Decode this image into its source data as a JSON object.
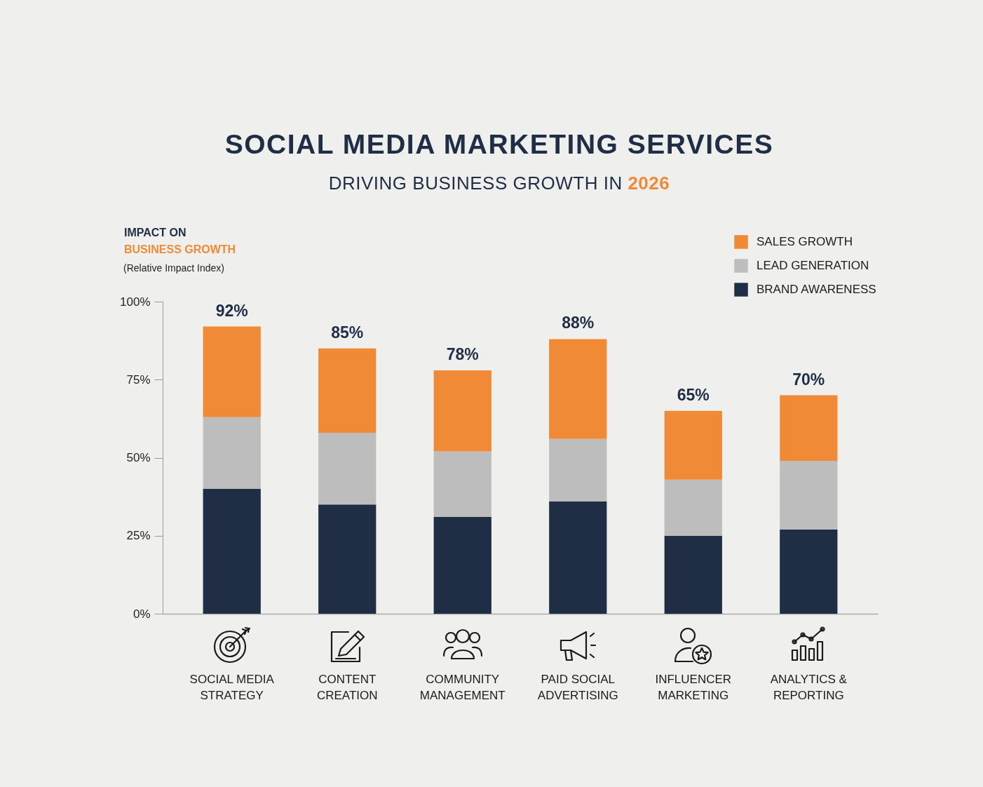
{
  "chart_data": {
    "type": "bar",
    "title": "SOCIAL MEDIA MARKETING SERVICES",
    "subtitle": "DRIVING BUSINESS GROWTH IN 2026",
    "ylabel": "IMPACT ON\nBUSINESS GROWTH",
    "annotations": [
      "(Relative Impact Index)"
    ],
    "categories": [
      "SOCIAL MEDIA STRATEGY",
      "CONTENT CREATION",
      "COMMUNITY MANAGEMENT",
      "PAID SOCIAL ADVERTISING",
      "INFLUENCER MARKETING",
      "ANALYTICS & REPORTING"
    ],
    "series": [
      {
        "name": "BRAND AWARENESS",
        "color": "#1f2e45",
        "values": [
          40,
          35,
          31,
          36,
          25,
          27
        ]
      },
      {
        "name": "LEAD GENERATION",
        "color": "#bdbdbd",
        "values": [
          23,
          23,
          21,
          20,
          18,
          22
        ]
      },
      {
        "name": "SALES GROWTH",
        "color": "#f08a36",
        "values": [
          29,
          27,
          26,
          32,
          22,
          21
        ]
      }
    ],
    "stacked": true,
    "totals": [
      "92%",
      "85%",
      "78%",
      "88%",
      "65%",
      "70%"
    ],
    "ylim": [
      0,
      100
    ],
    "yticks": [
      {
        "value": 0,
        "label": "0%"
      },
      {
        "value": 25,
        "label": "25%"
      },
      {
        "value": 50,
        "label": "50%"
      },
      {
        "value": 75,
        "label": "75%"
      },
      {
        "value": 100,
        "label": "100%"
      }
    ],
    "grid": false,
    "legend": "top right"
  }
}
